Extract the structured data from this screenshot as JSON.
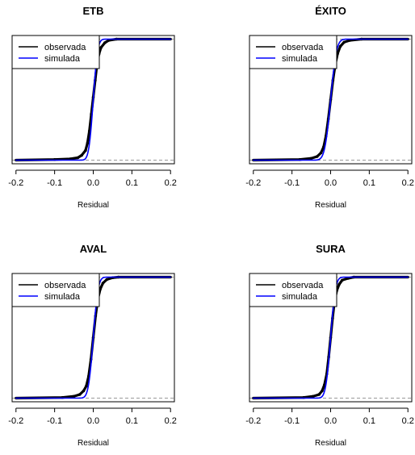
{
  "chart_data": [
    {
      "type": "line",
      "title": "ETB",
      "xlabel": "Residual",
      "ylabel": "",
      "xlim": [
        -0.21,
        0.21
      ],
      "ylim": [
        -0.03,
        1.03
      ],
      "xticks": [
        -0.2,
        -0.1,
        0.0,
        0.1,
        0.2
      ],
      "xtick_labels": [
        "-0.2",
        "-0.1",
        "0.0",
        "0.1",
        "0.2"
      ],
      "reference_lines": [
        0,
        1
      ],
      "grid": false,
      "legend": {
        "placement": "top-left",
        "entries": [
          "observada",
          "simulada"
        ]
      },
      "series": [
        {
          "name": "observada",
          "color": "#000000",
          "kind": "ecdf",
          "x": [
            -0.2,
            -0.1,
            -0.06,
            -0.04,
            -0.03,
            -0.02,
            -0.015,
            -0.01,
            -0.005,
            0.0,
            0.005,
            0.01,
            0.015,
            0.02,
            0.03,
            0.04,
            0.06,
            0.2
          ],
          "y": [
            0.0,
            0.005,
            0.01,
            0.02,
            0.04,
            0.08,
            0.14,
            0.24,
            0.38,
            0.52,
            0.66,
            0.8,
            0.88,
            0.93,
            0.97,
            0.99,
            1.0,
            1.0
          ]
        },
        {
          "name": "simulada",
          "color": "#0000ff",
          "kind": "normal_cdf",
          "mean": 0.0,
          "sd": 0.009,
          "x_range": [
            -0.2,
            0.2
          ]
        }
      ]
    },
    {
      "type": "line",
      "title": "ÉXITO",
      "xlabel": "Residual",
      "ylabel": "",
      "xlim": [
        -0.21,
        0.21
      ],
      "ylim": [
        -0.03,
        1.03
      ],
      "xticks": [
        -0.2,
        -0.1,
        0.0,
        0.1,
        0.2
      ],
      "xtick_labels": [
        "-0.2",
        "-0.1",
        "0.0",
        "0.1",
        "0.2"
      ],
      "reference_lines": [
        0,
        1
      ],
      "grid": false,
      "legend": {
        "placement": "top-left",
        "entries": [
          "observada",
          "simulada"
        ]
      },
      "series": [
        {
          "name": "observada",
          "color": "#000000",
          "kind": "ecdf",
          "x": [
            -0.2,
            -0.08,
            -0.05,
            -0.035,
            -0.025,
            -0.018,
            -0.012,
            -0.006,
            0.0,
            0.006,
            0.012,
            0.018,
            0.025,
            0.035,
            0.05,
            0.08,
            0.2
          ],
          "y": [
            0.0,
            0.005,
            0.015,
            0.03,
            0.06,
            0.11,
            0.2,
            0.34,
            0.5,
            0.66,
            0.79,
            0.88,
            0.94,
            0.975,
            0.99,
            1.0,
            1.0
          ]
        },
        {
          "name": "simulada",
          "color": "#0000ff",
          "kind": "normal_cdf",
          "mean": 0.0,
          "sd": 0.012,
          "x_range": [
            -0.2,
            0.2
          ]
        }
      ]
    },
    {
      "type": "line",
      "title": "AVAL",
      "xlabel": "Residual",
      "ylabel": "",
      "xlim": [
        -0.21,
        0.21
      ],
      "ylim": [
        -0.03,
        1.03
      ],
      "xticks": [
        -0.2,
        -0.1,
        0.0,
        0.1,
        0.2
      ],
      "xtick_labels": [
        "-0.2",
        "-0.1",
        "0.0",
        "0.1",
        "0.2"
      ],
      "reference_lines": [
        0,
        1
      ],
      "grid": false,
      "legend": {
        "placement": "top-left",
        "entries": [
          "observada",
          "simulada"
        ]
      },
      "series": [
        {
          "name": "observada",
          "color": "#000000",
          "kind": "ecdf",
          "x": [
            -0.2,
            -0.08,
            -0.05,
            -0.035,
            -0.025,
            -0.018,
            -0.012,
            -0.006,
            0.0,
            0.006,
            0.012,
            0.018,
            0.025,
            0.035,
            0.05,
            0.065,
            0.2
          ],
          "y": [
            0.0,
            0.005,
            0.015,
            0.03,
            0.06,
            0.1,
            0.18,
            0.32,
            0.5,
            0.68,
            0.82,
            0.9,
            0.95,
            0.98,
            0.995,
            1.0,
            1.0
          ]
        },
        {
          "name": "simulada",
          "color": "#0000ff",
          "kind": "normal_cdf",
          "mean": 0.0,
          "sd": 0.01,
          "x_range": [
            -0.2,
            0.2
          ]
        }
      ]
    },
    {
      "type": "line",
      "title": "SURA",
      "xlabel": "Residual",
      "ylabel": "",
      "xlim": [
        -0.21,
        0.21
      ],
      "ylim": [
        -0.03,
        1.03
      ],
      "xticks": [
        -0.2,
        -0.1,
        0.0,
        0.1,
        0.2
      ],
      "xtick_labels": [
        "-0.2",
        "-0.1",
        "0.0",
        "0.1",
        "0.2"
      ],
      "reference_lines": [
        0,
        1
      ],
      "grid": false,
      "legend": {
        "placement": "top-left",
        "entries": [
          "observada",
          "simulada"
        ]
      },
      "series": [
        {
          "name": "observada",
          "color": "#000000",
          "kind": "ecdf",
          "x": [
            -0.2,
            -0.07,
            -0.045,
            -0.03,
            -0.022,
            -0.016,
            -0.01,
            -0.005,
            0.0,
            0.005,
            0.01,
            0.016,
            0.022,
            0.03,
            0.045,
            0.06,
            0.2
          ],
          "y": [
            0.0,
            0.005,
            0.015,
            0.03,
            0.06,
            0.11,
            0.2,
            0.34,
            0.5,
            0.66,
            0.8,
            0.89,
            0.94,
            0.975,
            0.99,
            1.0,
            1.0
          ]
        },
        {
          "name": "simulada",
          "color": "#0000ff",
          "kind": "normal_cdf",
          "mean": 0.0,
          "sd": 0.01,
          "x_range": [
            -0.2,
            0.2
          ]
        }
      ]
    }
  ]
}
